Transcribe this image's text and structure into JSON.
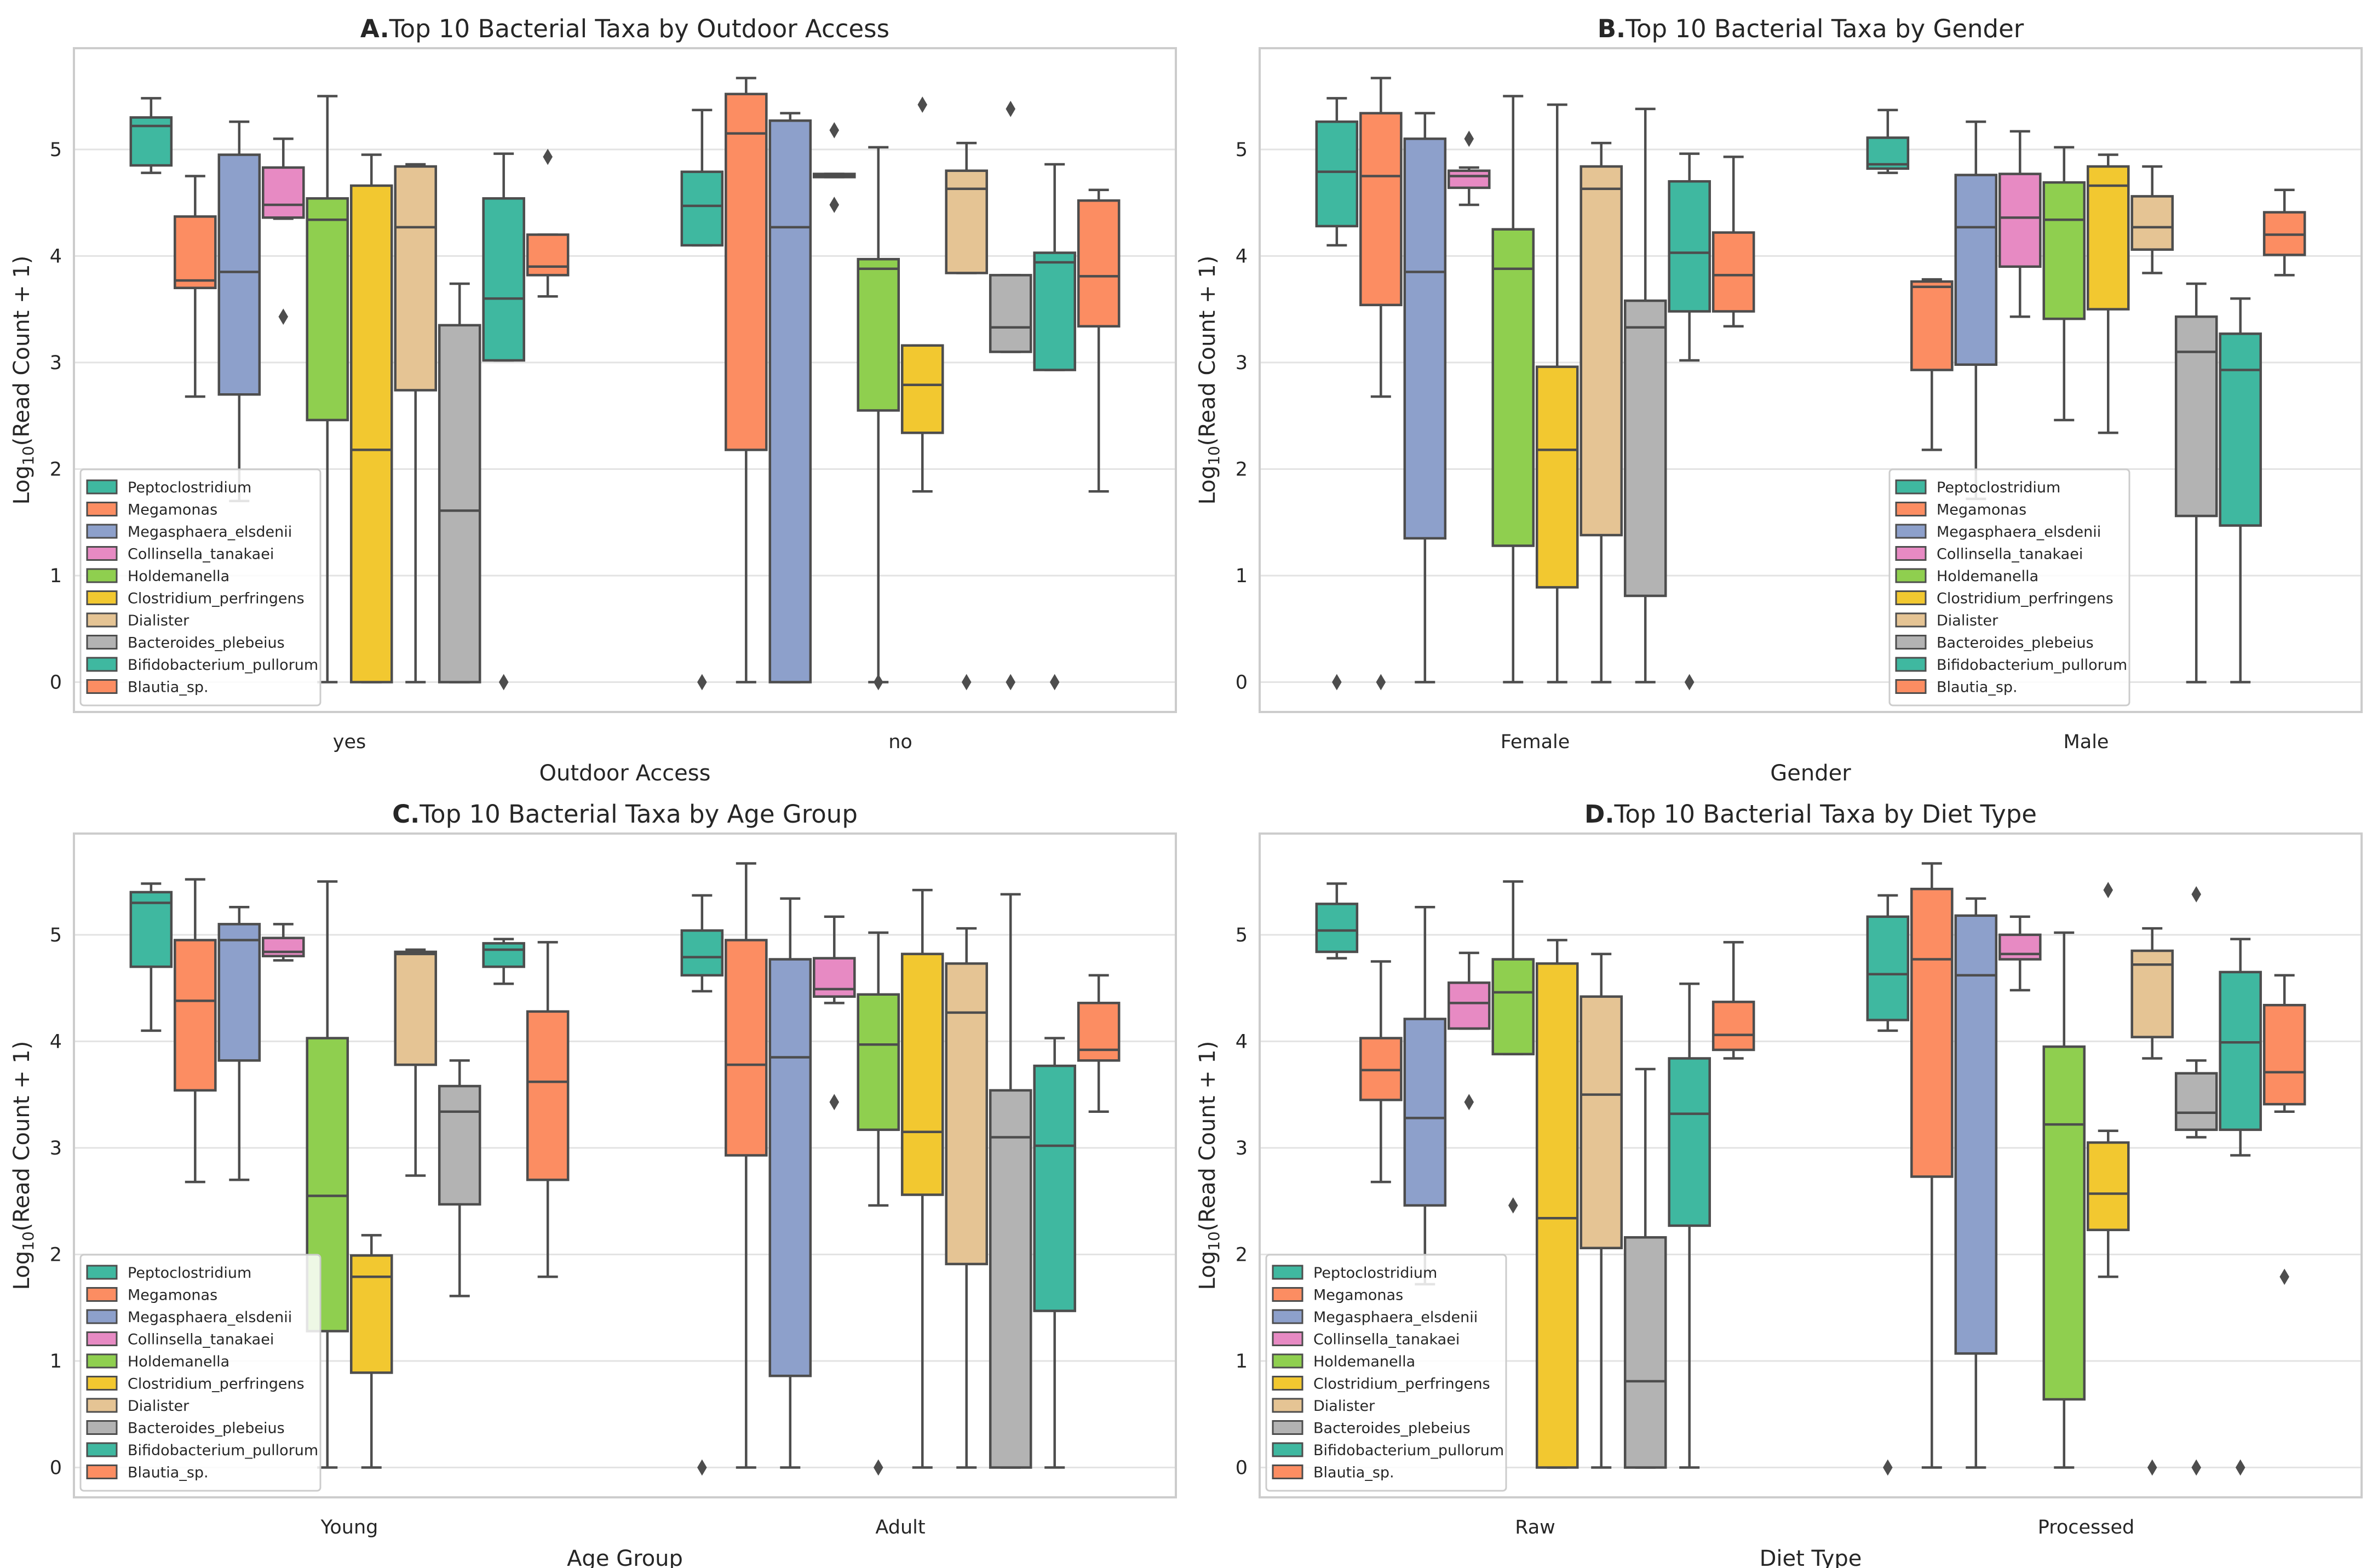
{
  "colors": {
    "axes_bg": "#ffffff",
    "frame": "#cccccc",
    "grid": "#e3e3e3",
    "line": "#4d4d4d",
    "text": "#262626"
  },
  "taxa": [
    {
      "name": "Peptoclostridium",
      "color": "#3fb8a0"
    },
    {
      "name": "Megamonas",
      "color": "#fc8d62"
    },
    {
      "name": "Megasphaera_elsdenii",
      "color": "#8da0cb"
    },
    {
      "name": "Collinsella_tanakaei",
      "color": "#e78ac3"
    },
    {
      "name": "Holdemanella",
      "color": "#8fcf4f"
    },
    {
      "name": "Clostridium_perfringens",
      "color": "#f2c830"
    },
    {
      "name": "Dialister",
      "color": "#e5c494"
    },
    {
      "name": "Bacteroides_plebeius",
      "color": "#b3b3b3"
    },
    {
      "name": "Bifidobacterium_pullorum",
      "color": "#3fb8a0"
    },
    {
      "name": "Blautia_sp.",
      "color": "#fc8d62"
    }
  ],
  "chart_data": [
    {
      "type": "boxplot",
      "panel_label": "A.",
      "title": "Top 10 Bacterial Taxa by Outdoor Access",
      "xlabel": "Outdoor Access",
      "ylabel_main": "Log",
      "ylabel_sub": "10",
      "ylabel_rest": "(Read Count + 1)",
      "ylim": [
        -0.28,
        5.95
      ],
      "yticks": [
        "0",
        "1",
        "2",
        "3",
        "4",
        "5"
      ],
      "legend_position": "lower-left",
      "categories": [
        "yes",
        "no"
      ],
      "boxes": [
        [
          {
            "wlo": 4.78,
            "q1": 4.85,
            "med": 5.22,
            "q3": 5.3,
            "whi": 5.48,
            "fliers": []
          },
          {
            "wlo": 2.68,
            "q1": 3.7,
            "med": 3.77,
            "q3": 4.37,
            "whi": 4.75,
            "fliers": []
          },
          {
            "wlo": 1.7,
            "q1": 2.7,
            "med": 3.85,
            "q3": 4.95,
            "whi": 5.26,
            "fliers": []
          },
          {
            "wlo": 4.35,
            "q1": 4.36,
            "med": 4.48,
            "q3": 4.83,
            "whi": 5.1,
            "fliers": [
              3.43
            ]
          },
          {
            "wlo": 0.0,
            "q1": 2.46,
            "med": 4.34,
            "q3": 4.54,
            "whi": 5.5,
            "fliers": []
          },
          {
            "wlo": 0.0,
            "q1": 0.0,
            "med": 2.18,
            "q3": 4.66,
            "whi": 4.95,
            "fliers": []
          },
          {
            "wlo": 0.0,
            "q1": 2.74,
            "med": 4.27,
            "q3": 4.84,
            "whi": 4.86,
            "fliers": []
          },
          {
            "wlo": 0.0,
            "q1": 0.0,
            "med": 1.61,
            "q3": 3.35,
            "whi": 3.74,
            "fliers": []
          },
          {
            "wlo": 3.02,
            "q1": 3.02,
            "med": 3.6,
            "q3": 4.54,
            "whi": 4.96,
            "fliers": [
              0.0
            ]
          },
          {
            "wlo": 3.62,
            "q1": 3.82,
            "med": 3.9,
            "q3": 4.2,
            "whi": 4.2,
            "fliers": [
              4.93
            ]
          }
        ],
        [
          {
            "wlo": 4.1,
            "q1": 4.1,
            "med": 4.47,
            "q3": 4.79,
            "whi": 5.37,
            "fliers": [
              0.0
            ]
          },
          {
            "wlo": 0.0,
            "q1": 2.18,
            "med": 5.15,
            "q3": 5.52,
            "whi": 5.67,
            "fliers": []
          },
          {
            "wlo": 0.0,
            "q1": 0.0,
            "med": 4.27,
            "q3": 5.27,
            "whi": 5.34,
            "fliers": []
          },
          {
            "wlo": 4.74,
            "q1": 4.74,
            "med": 4.76,
            "q3": 4.77,
            "whi": 4.77,
            "fliers": [
              5.18,
              4.48
            ]
          },
          {
            "wlo": 0.0,
            "q1": 2.55,
            "med": 3.88,
            "q3": 3.97,
            "whi": 5.02,
            "fliers": [
              0.0
            ]
          },
          {
            "wlo": 1.79,
            "q1": 2.34,
            "med": 2.79,
            "q3": 3.16,
            "whi": 3.16,
            "fliers": [
              5.42
            ]
          },
          {
            "wlo": 3.84,
            "q1": 3.84,
            "med": 4.63,
            "q3": 4.8,
            "whi": 5.06,
            "fliers": [
              0.0
            ]
          },
          {
            "wlo": 3.1,
            "q1": 3.1,
            "med": 3.33,
            "q3": 3.82,
            "whi": 3.82,
            "fliers": [
              5.38,
              0.0
            ]
          },
          {
            "wlo": 2.93,
            "q1": 2.93,
            "med": 3.94,
            "q3": 4.03,
            "whi": 4.86,
            "fliers": [
              0.0
            ]
          },
          {
            "wlo": 1.79,
            "q1": 3.34,
            "med": 3.81,
            "q3": 4.52,
            "whi": 4.62,
            "fliers": []
          }
        ]
      ]
    },
    {
      "type": "boxplot",
      "panel_label": "B.",
      "title": "Top 10 Bacterial Taxa by Gender",
      "xlabel": "Gender",
      "ylabel_main": "Log",
      "ylabel_sub": "10",
      "ylabel_rest": "(Read Count + 1)",
      "ylim": [
        -0.28,
        5.95
      ],
      "yticks": [
        "0",
        "1",
        "2",
        "3",
        "4",
        "5"
      ],
      "legend_position": "lower-center",
      "categories": [
        "Female",
        "Male"
      ],
      "boxes": [
        [
          {
            "wlo": 4.1,
            "q1": 4.28,
            "med": 4.79,
            "q3": 5.26,
            "whi": 5.48,
            "fliers": [
              0.0
            ]
          },
          {
            "wlo": 2.68,
            "q1": 3.54,
            "med": 4.75,
            "q3": 5.34,
            "whi": 5.67,
            "fliers": [
              0.0
            ]
          },
          {
            "wlo": 0.0,
            "q1": 1.35,
            "med": 3.85,
            "q3": 5.1,
            "whi": 5.34,
            "fliers": []
          },
          {
            "wlo": 4.48,
            "q1": 4.64,
            "med": 4.75,
            "q3": 4.8,
            "whi": 4.83,
            "fliers": [
              5.1
            ]
          },
          {
            "wlo": 0.0,
            "q1": 1.28,
            "med": 3.88,
            "q3": 4.25,
            "whi": 5.5,
            "fliers": []
          },
          {
            "wlo": 0.0,
            "q1": 0.89,
            "med": 2.18,
            "q3": 2.96,
            "whi": 5.42,
            "fliers": []
          },
          {
            "wlo": 0.0,
            "q1": 1.38,
            "med": 4.63,
            "q3": 4.84,
            "whi": 5.06,
            "fliers": []
          },
          {
            "wlo": 0.0,
            "q1": 0.81,
            "med": 3.33,
            "q3": 3.58,
            "whi": 5.38,
            "fliers": []
          },
          {
            "wlo": 3.02,
            "q1": 3.48,
            "med": 4.03,
            "q3": 4.7,
            "whi": 4.96,
            "fliers": [
              0.0
            ]
          },
          {
            "wlo": 3.34,
            "q1": 3.48,
            "med": 3.82,
            "q3": 4.22,
            "whi": 4.93,
            "fliers": []
          }
        ],
        [
          {
            "wlo": 4.78,
            "q1": 4.82,
            "med": 4.86,
            "q3": 5.11,
            "whi": 5.37,
            "fliers": []
          },
          {
            "wlo": 2.18,
            "q1": 2.93,
            "med": 3.71,
            "q3": 3.76,
            "whi": 3.78,
            "fliers": []
          },
          {
            "wlo": 1.72,
            "q1": 2.98,
            "med": 4.27,
            "q3": 4.76,
            "whi": 5.26,
            "fliers": []
          },
          {
            "wlo": 3.43,
            "q1": 3.9,
            "med": 4.36,
            "q3": 4.77,
            "whi": 5.17,
            "fliers": []
          },
          {
            "wlo": 2.46,
            "q1": 3.41,
            "med": 4.34,
            "q3": 4.69,
            "whi": 5.02,
            "fliers": []
          },
          {
            "wlo": 2.34,
            "q1": 3.5,
            "med": 4.66,
            "q3": 4.84,
            "whi": 4.95,
            "fliers": []
          },
          {
            "wlo": 3.84,
            "q1": 4.06,
            "med": 4.27,
            "q3": 4.56,
            "whi": 4.84,
            "fliers": []
          },
          {
            "wlo": 0.0,
            "q1": 1.56,
            "med": 3.1,
            "q3": 3.43,
            "whi": 3.74,
            "fliers": []
          },
          {
            "wlo": 0.0,
            "q1": 1.47,
            "med": 2.93,
            "q3": 3.27,
            "whi": 3.6,
            "fliers": []
          },
          {
            "wlo": 3.82,
            "q1": 4.01,
            "med": 4.2,
            "q3": 4.41,
            "whi": 4.62,
            "fliers": []
          }
        ]
      ]
    },
    {
      "type": "boxplot",
      "panel_label": "C.",
      "title": "Top 10 Bacterial Taxa by Age Group",
      "xlabel": "Age Group",
      "ylabel_main": "Log",
      "ylabel_sub": "10",
      "ylabel_rest": "(Read Count + 1)",
      "ylim": [
        -0.28,
        5.95
      ],
      "yticks": [
        "0",
        "1",
        "2",
        "3",
        "4",
        "5"
      ],
      "legend_position": "lower-left",
      "categories": [
        "Young",
        "Adult"
      ],
      "boxes": [
        [
          {
            "wlo": 4.1,
            "q1": 4.7,
            "med": 5.3,
            "q3": 5.4,
            "whi": 5.48,
            "fliers": []
          },
          {
            "wlo": 2.68,
            "q1": 3.54,
            "med": 4.38,
            "q3": 4.95,
            "whi": 5.52,
            "fliers": []
          },
          {
            "wlo": 2.7,
            "q1": 3.82,
            "med": 4.95,
            "q3": 5.1,
            "whi": 5.26,
            "fliers": []
          },
          {
            "wlo": 4.76,
            "q1": 4.8,
            "med": 4.84,
            "q3": 4.97,
            "whi": 5.1,
            "fliers": []
          },
          {
            "wlo": 0.0,
            "q1": 1.28,
            "med": 2.55,
            "q3": 4.03,
            "whi": 5.5,
            "fliers": []
          },
          {
            "wlo": 0.0,
            "q1": 0.89,
            "med": 1.79,
            "q3": 1.99,
            "whi": 2.18,
            "fliers": []
          },
          {
            "wlo": 2.74,
            "q1": 3.78,
            "med": 4.82,
            "q3": 4.84,
            "whi": 4.86,
            "fliers": []
          },
          {
            "wlo": 1.61,
            "q1": 2.47,
            "med": 3.34,
            "q3": 3.58,
            "whi": 3.82,
            "fliers": []
          },
          {
            "wlo": 4.54,
            "q1": 4.7,
            "med": 4.86,
            "q3": 4.92,
            "whi": 4.96,
            "fliers": []
          },
          {
            "wlo": 1.79,
            "q1": 2.7,
            "med": 3.62,
            "q3": 4.28,
            "whi": 4.93,
            "fliers": []
          }
        ],
        [
          {
            "wlo": 4.47,
            "q1": 4.62,
            "med": 4.79,
            "q3": 5.04,
            "whi": 5.37,
            "fliers": [
              0.0
            ]
          },
          {
            "wlo": 0.0,
            "q1": 2.93,
            "med": 3.78,
            "q3": 4.95,
            "whi": 5.67,
            "fliers": []
          },
          {
            "wlo": 0.0,
            "q1": 0.86,
            "med": 3.85,
            "q3": 4.77,
            "whi": 5.34,
            "fliers": []
          },
          {
            "wlo": 4.36,
            "q1": 4.42,
            "med": 4.49,
            "q3": 4.78,
            "whi": 5.17,
            "fliers": [
              3.43
            ]
          },
          {
            "wlo": 2.46,
            "q1": 3.17,
            "med": 3.97,
            "q3": 4.44,
            "whi": 5.02,
            "fliers": [
              0.0
            ]
          },
          {
            "wlo": 0.0,
            "q1": 2.56,
            "med": 3.15,
            "q3": 4.82,
            "whi": 5.42,
            "fliers": []
          },
          {
            "wlo": 0.0,
            "q1": 1.91,
            "med": 4.27,
            "q3": 4.73,
            "whi": 5.06,
            "fliers": []
          },
          {
            "wlo": 0.0,
            "q1": 0.0,
            "med": 3.1,
            "q3": 3.54,
            "whi": 5.38,
            "fliers": []
          },
          {
            "wlo": 0.0,
            "q1": 1.47,
            "med": 3.02,
            "q3": 3.77,
            "whi": 4.03,
            "fliers": []
          },
          {
            "wlo": 3.34,
            "q1": 3.82,
            "med": 3.92,
            "q3": 4.36,
            "whi": 4.62,
            "fliers": []
          }
        ]
      ]
    },
    {
      "type": "boxplot",
      "panel_label": "D.",
      "title": "Top 10 Bacterial Taxa by Diet Type",
      "xlabel": "Diet Type",
      "ylabel_main": "Log",
      "ylabel_sub": "10",
      "ylabel_rest": "(Read Count + 1)",
      "ylim": [
        -0.28,
        5.95
      ],
      "yticks": [
        "0",
        "1",
        "2",
        "3",
        "4",
        "5"
      ],
      "legend_position": "lower-left",
      "categories": [
        "Raw",
        "Processed"
      ],
      "boxes": [
        [
          {
            "wlo": 4.78,
            "q1": 4.84,
            "med": 5.04,
            "q3": 5.29,
            "whi": 5.48,
            "fliers": []
          },
          {
            "wlo": 2.68,
            "q1": 3.45,
            "med": 3.73,
            "q3": 4.03,
            "whi": 4.75,
            "fliers": []
          },
          {
            "wlo": 1.72,
            "q1": 2.46,
            "med": 3.28,
            "q3": 4.21,
            "whi": 5.26,
            "fliers": []
          },
          {
            "wlo": 4.12,
            "q1": 4.12,
            "med": 4.36,
            "q3": 4.55,
            "whi": 4.83,
            "fliers": [
              3.43
            ]
          },
          {
            "wlo": 3.88,
            "q1": 3.88,
            "med": 4.46,
            "q3": 4.77,
            "whi": 5.5,
            "fliers": [
              2.46
            ]
          },
          {
            "wlo": 0.0,
            "q1": 0.0,
            "med": 2.34,
            "q3": 4.73,
            "whi": 4.95,
            "fliers": []
          },
          {
            "wlo": 0.0,
            "q1": 2.06,
            "med": 3.5,
            "q3": 4.42,
            "whi": 4.82,
            "fliers": []
          },
          {
            "wlo": 0.0,
            "q1": 0.0,
            "med": 0.81,
            "q3": 2.16,
            "whi": 3.74,
            "fliers": []
          },
          {
            "wlo": 0.0,
            "q1": 2.27,
            "med": 3.32,
            "q3": 3.84,
            "whi": 4.54,
            "fliers": []
          },
          {
            "wlo": 3.84,
            "q1": 3.92,
            "med": 4.06,
            "q3": 4.37,
            "whi": 4.93,
            "fliers": []
          }
        ],
        [
          {
            "wlo": 4.1,
            "q1": 4.2,
            "med": 4.63,
            "q3": 5.17,
            "whi": 5.37,
            "fliers": [
              0.0
            ]
          },
          {
            "wlo": 0.0,
            "q1": 2.73,
            "med": 4.77,
            "q3": 5.43,
            "whi": 5.67,
            "fliers": []
          },
          {
            "wlo": 0.0,
            "q1": 1.07,
            "med": 4.62,
            "q3": 5.18,
            "whi": 5.34,
            "fliers": []
          },
          {
            "wlo": 4.48,
            "q1": 4.77,
            "med": 4.82,
            "q3": 5.0,
            "whi": 5.17,
            "fliers": []
          },
          {
            "wlo": 0.0,
            "q1": 0.64,
            "med": 3.22,
            "q3": 3.95,
            "whi": 5.02,
            "fliers": []
          },
          {
            "wlo": 1.79,
            "q1": 2.23,
            "med": 2.57,
            "q3": 3.05,
            "whi": 3.16,
            "fliers": [
              5.42
            ]
          },
          {
            "wlo": 3.84,
            "q1": 4.04,
            "med": 4.72,
            "q3": 4.85,
            "whi": 5.06,
            "fliers": [
              0.0
            ]
          },
          {
            "wlo": 3.1,
            "q1": 3.17,
            "med": 3.33,
            "q3": 3.7,
            "whi": 3.82,
            "fliers": [
              5.38,
              0.0
            ]
          },
          {
            "wlo": 2.93,
            "q1": 3.17,
            "med": 3.99,
            "q3": 4.65,
            "whi": 4.96,
            "fliers": [
              0.0
            ]
          },
          {
            "wlo": 3.34,
            "q1": 3.41,
            "med": 3.71,
            "q3": 4.34,
            "whi": 4.62,
            "fliers": [
              1.79
            ]
          }
        ]
      ]
    }
  ]
}
